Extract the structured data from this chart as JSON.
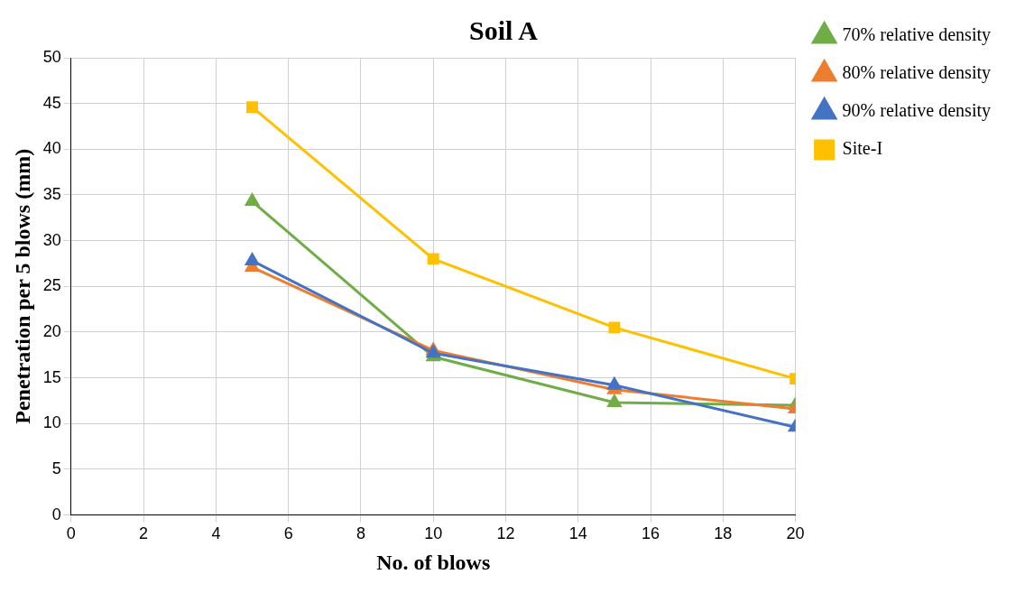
{
  "chart_data": {
    "type": "line",
    "title": "Soil A",
    "xlabel": "No. of blows",
    "ylabel": "Penetration per 5 blows (mm)",
    "x": [
      5,
      10,
      15,
      20
    ],
    "series": [
      {
        "name": "70% relative density",
        "color": "#70ad47",
        "marker": "triangle",
        "values": [
          34.3,
          17.3,
          12.3,
          12.0
        ]
      },
      {
        "name": "80% relative density",
        "color": "#ed7d31",
        "marker": "triangle",
        "values": [
          27.1,
          18.0,
          13.7,
          11.6
        ]
      },
      {
        "name": "90% relative density",
        "color": "#4472c4",
        "marker": "triangle",
        "values": [
          27.8,
          17.7,
          14.2,
          9.6
        ]
      },
      {
        "name": "Site-I",
        "color": "#ffc000",
        "marker": "square",
        "values": [
          44.6,
          28.0,
          20.5,
          14.9
        ]
      }
    ],
    "xlim": [
      0,
      20
    ],
    "xticks": [
      0,
      2,
      4,
      6,
      8,
      10,
      12,
      14,
      16,
      18,
      20
    ],
    "ylim": [
      0,
      50
    ],
    "yticks": [
      0,
      5,
      10,
      15,
      20,
      25,
      30,
      35,
      40,
      45,
      50
    ],
    "grid": true,
    "legend": "right"
  }
}
